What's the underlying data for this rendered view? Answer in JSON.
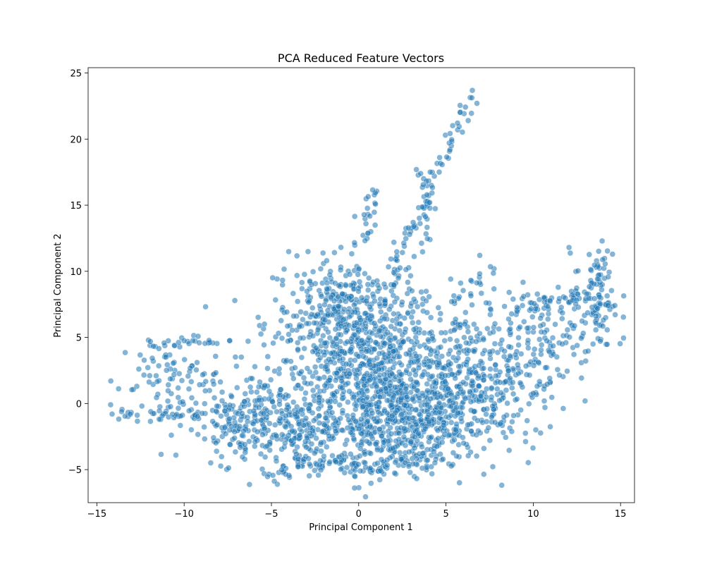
{
  "chart_data": {
    "type": "scatter",
    "title": "PCA Reduced Feature Vectors",
    "xlabel": "Principal Component 1",
    "ylabel": "Principal Component 2",
    "xlim": [
      -15.5,
      15.8
    ],
    "ylim": [
      -7.5,
      25.4
    ],
    "xticks": [
      -15,
      -10,
      -5,
      0,
      5,
      10,
      15
    ],
    "yticks": [
      -5,
      0,
      5,
      10,
      15,
      20,
      25
    ],
    "grid": false,
    "legend": "none",
    "point_color": "#1f77b4",
    "point_edge_color": "#ffffff",
    "point_alpha": 0.55,
    "clusters": [
      {
        "center": [
          1.0,
          1.5
        ],
        "spread": [
          3.2,
          3.0
        ],
        "count": 900
      },
      {
        "center": [
          -0.5,
          7.0
        ],
        "spread": [
          2.2,
          2.0
        ],
        "count": 350
      },
      {
        "center": [
          3.0,
          -1.5
        ],
        "spread": [
          2.5,
          1.8
        ],
        "count": 350
      },
      {
        "center": [
          -4.5,
          -1.5
        ],
        "spread": [
          1.8,
          1.6
        ],
        "count": 200
      },
      {
        "center": [
          7.5,
          2.0
        ],
        "spread": [
          2.0,
          2.2
        ],
        "count": 220
      },
      {
        "center": [
          10.5,
          5.5
        ],
        "spread": [
          1.8,
          1.6
        ],
        "count": 120
      },
      {
        "center": [
          -11.0,
          1.5
        ],
        "spread": [
          1.6,
          1.8
        ],
        "count": 90
      },
      {
        "center": [
          -7.5,
          -1.5
        ],
        "spread": [
          1.2,
          1.4
        ],
        "count": 80
      },
      {
        "center": [
          13.5,
          8.0
        ],
        "spread": [
          0.7,
          1.8
        ],
        "count": 60
      },
      {
        "center": [
          0.5,
          -4.5
        ],
        "spread": [
          2.2,
          0.5
        ],
        "count": 100
      }
    ],
    "trails": [
      {
        "from": [
          2.0,
          10.0
        ],
        "to": [
          6.5,
          23.5
        ],
        "count": 70
      },
      {
        "from": [
          0.0,
          12.0
        ],
        "to": [
          0.8,
          16.3
        ],
        "count": 25
      },
      {
        "from": [
          4.0,
          12.0
        ],
        "to": [
          3.5,
          17.5
        ],
        "count": 25
      },
      {
        "from": [
          -14.0,
          -0.8
        ],
        "to": [
          -9.0,
          -1.0
        ],
        "count": 30
      },
      {
        "from": [
          -12.0,
          4.5
        ],
        "to": [
          -8.0,
          4.8
        ],
        "count": 25
      },
      {
        "from": [
          9.0,
          7.0
        ],
        "to": [
          14.0,
          8.5
        ],
        "count": 40
      },
      {
        "from": [
          13.5,
          9.0
        ],
        "to": [
          14.1,
          11.3
        ],
        "count": 20
      },
      {
        "from": [
          7.5,
          10.0
        ],
        "to": [
          5.5,
          7.5
        ],
        "count": 20
      },
      {
        "from": [
          13.5,
          7.3
        ],
        "to": [
          14.4,
          7.4
        ],
        "count": 12
      },
      {
        "from": [
          -5.0,
          -5.9
        ],
        "to": [
          -3.0,
          -4.0
        ],
        "count": 20
      }
    ]
  }
}
